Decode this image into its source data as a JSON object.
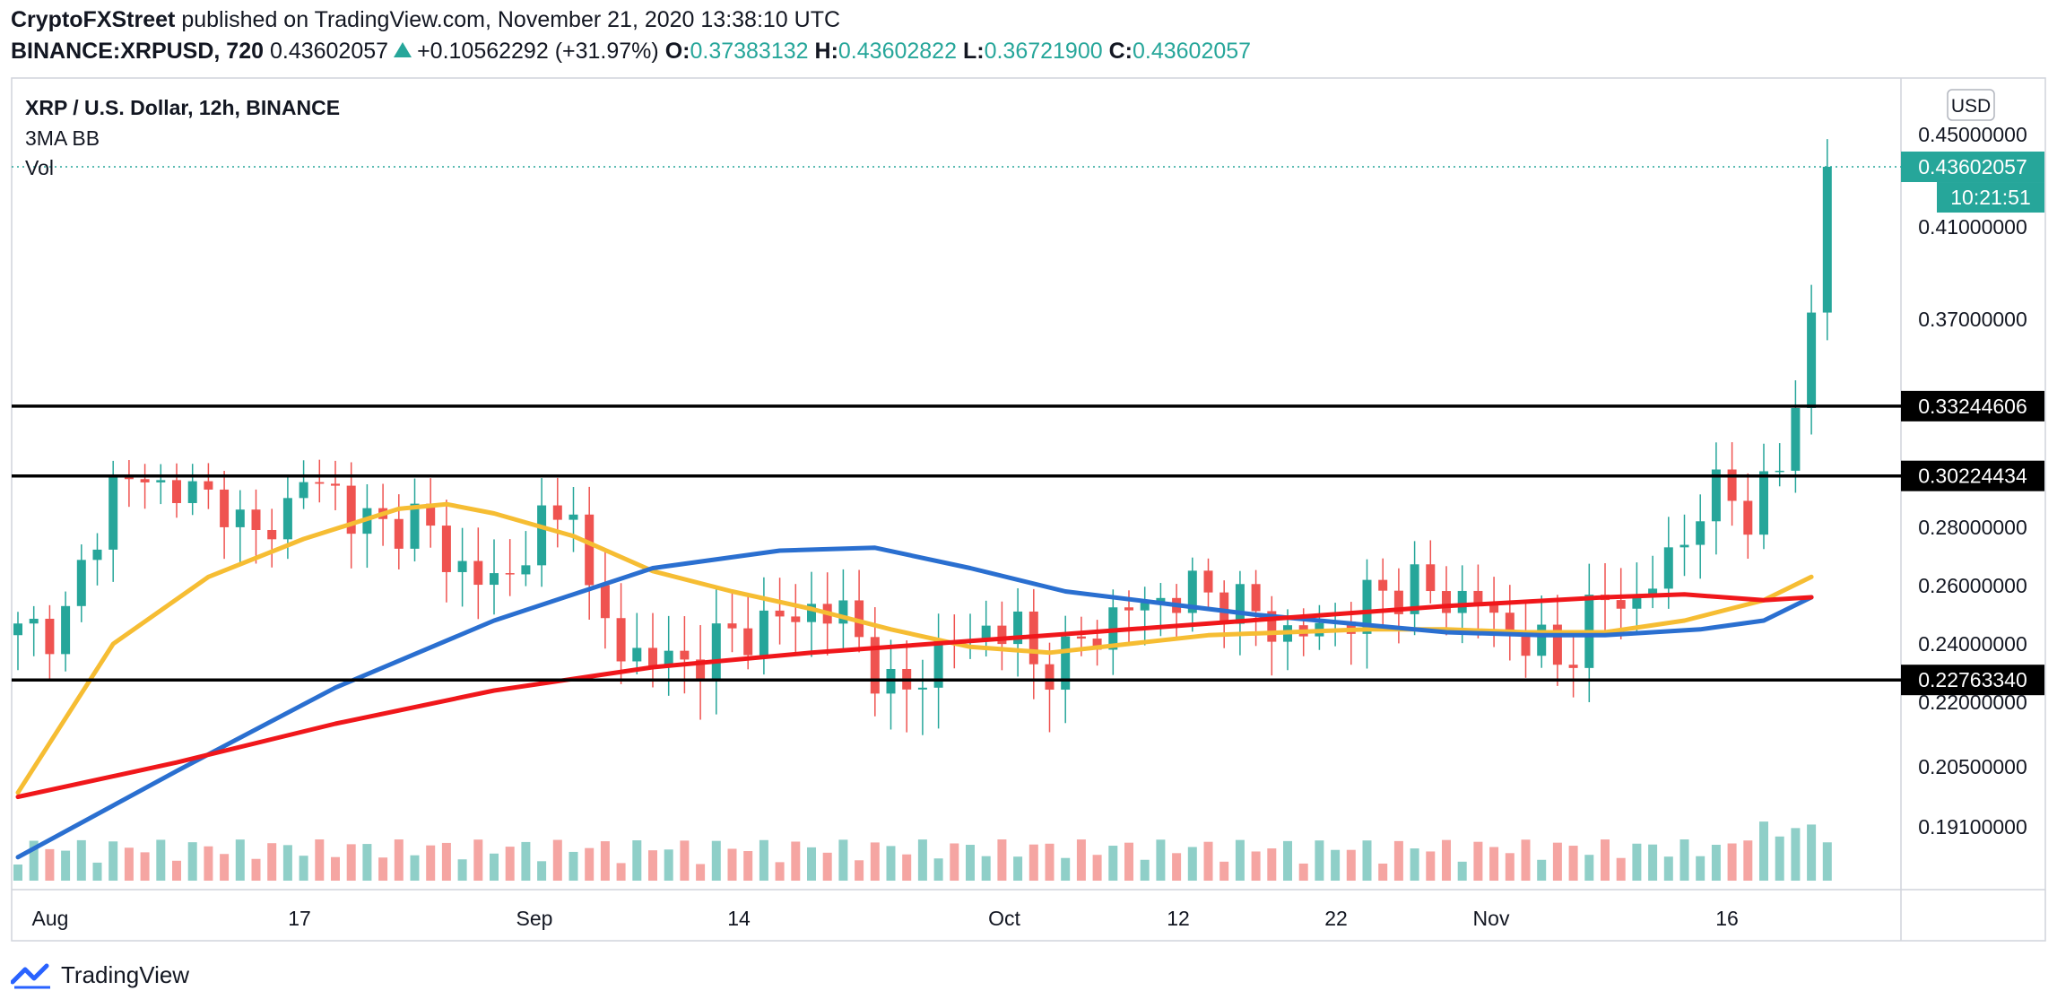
{
  "header": {
    "publisher": "CryptoFXStreet",
    "published_text": "published on TradingView.com, November 21, 2020 13:38:10 UTC",
    "symbol": "BINANCE:XRPUSD, 720",
    "last": "0.43602057",
    "change": "+0.10562292 (+31.97%)",
    "o_label": "O:",
    "o": "0.37383132",
    "h_label": "H:",
    "h": "0.43602822",
    "l_label": "L:",
    "l": "0.36721900",
    "c_label": "C:",
    "c": "0.43602057"
  },
  "legend": {
    "title": "XRP / U.S. Dollar, 12h, BINANCE",
    "indicator": "3MA BB",
    "volume": "Vol"
  },
  "price_axis": {
    "currency": "USD",
    "last_price_tag": "0.43602057",
    "countdown_tag": "10:21:51"
  },
  "footer": {
    "brand": "TradingView"
  },
  "colors": {
    "up": "#26a69a",
    "down": "#ef5350",
    "vol_up": "#8fcfc8",
    "vol_down": "#f5a5a2",
    "ma_yellow": "#f6bd33",
    "ma_blue": "#2a6fd0",
    "ma_red": "#f0171b",
    "level_line": "#000000",
    "tag_bg": "#000000",
    "last_bg": "#26a69a"
  },
  "chart_data": {
    "type": "candlestick",
    "title": "XRP / U.S. Dollar, 12h, BINANCE",
    "x_tick_labels": [
      "Aug",
      "17",
      "Sep",
      "14",
      "Oct",
      "12",
      "22",
      "Nov",
      "16"
    ],
    "y_tick_labels": [
      "0.45000000",
      "0.41000000",
      "0.37000000",
      "0.28000000",
      "0.26000000",
      "0.24000000",
      "0.22000000",
      "0.20500000",
      "0.19100000"
    ],
    "y_ticks": [
      0.45,
      0.41,
      0.37,
      0.28,
      0.26,
      0.24,
      0.22,
      0.205,
      0.191
    ],
    "horizontal_levels": [
      {
        "value": 0.33244606,
        "label": "0.33244606"
      },
      {
        "value": 0.30224434,
        "label": "0.30224434"
      },
      {
        "value": 0.2276334,
        "label": "0.22763340"
      }
    ],
    "last_price": 0.43602057,
    "close_path": [
      [
        0,
        0.243
      ],
      [
        3,
        0.248
      ],
      [
        5,
        0.28
      ],
      [
        6,
        0.3
      ],
      [
        8,
        0.3
      ],
      [
        11,
        0.295
      ],
      [
        13,
        0.29
      ],
      [
        15,
        0.275
      ],
      [
        17,
        0.29
      ],
      [
        18,
        0.3
      ],
      [
        20,
        0.296
      ],
      [
        21,
        0.285
      ],
      [
        23,
        0.28
      ],
      [
        25,
        0.285
      ],
      [
        27,
        0.27
      ],
      [
        29,
        0.262
      ],
      [
        31,
        0.262
      ],
      [
        32,
        0.275
      ],
      [
        33,
        0.283
      ],
      [
        34,
        0.28
      ],
      [
        35,
        0.295
      ],
      [
        36,
        0.255
      ],
      [
        38,
        0.238
      ],
      [
        40,
        0.235
      ],
      [
        42,
        0.233
      ],
      [
        44,
        0.24
      ],
      [
        46,
        0.245
      ],
      [
        48,
        0.248
      ],
      [
        50,
        0.252
      ],
      [
        52,
        0.25
      ],
      [
        54,
        0.232
      ],
      [
        55,
        0.224
      ],
      [
        56,
        0.222
      ],
      [
        57,
        0.233
      ],
      [
        59,
        0.24
      ],
      [
        61,
        0.245
      ],
      [
        63,
        0.245
      ],
      [
        64,
        0.232
      ],
      [
        66,
        0.235
      ],
      [
        68,
        0.245
      ],
      [
        70,
        0.252
      ],
      [
        72,
        0.255
      ],
      [
        74,
        0.258
      ],
      [
        76,
        0.256
      ],
      [
        78,
        0.25
      ],
      [
        80,
        0.243
      ],
      [
        82,
        0.245
      ],
      [
        84,
        0.25
      ],
      [
        86,
        0.258
      ],
      [
        88,
        0.26
      ],
      [
        90,
        0.255
      ],
      [
        92,
        0.256
      ],
      [
        93,
        0.247
      ],
      [
        95,
        0.243
      ],
      [
        96,
        0.238
      ],
      [
        97,
        0.233
      ],
      [
        98,
        0.24
      ],
      [
        99,
        0.25
      ],
      [
        100,
        0.255
      ],
      [
        102,
        0.255
      ],
      [
        103,
        0.262
      ],
      [
        104,
        0.268
      ],
      [
        105,
        0.275
      ],
      [
        106,
        0.29
      ],
      [
        107,
        0.296
      ],
      [
        108,
        0.292
      ],
      [
        109,
        0.285
      ],
      [
        110,
        0.298
      ],
      [
        111,
        0.305
      ],
      [
        112,
        0.333
      ],
      [
        113,
        0.372
      ],
      [
        114,
        0.436
      ]
    ],
    "ma_yellow": [
      [
        0,
        0.199
      ],
      [
        6,
        0.24
      ],
      [
        12,
        0.263
      ],
      [
        18,
        0.276
      ],
      [
        24,
        0.288
      ],
      [
        27,
        0.29
      ],
      [
        30,
        0.286
      ],
      [
        35,
        0.277
      ],
      [
        40,
        0.265
      ],
      [
        45,
        0.258
      ],
      [
        50,
        0.252
      ],
      [
        55,
        0.245
      ],
      [
        60,
        0.239
      ],
      [
        65,
        0.237
      ],
      [
        70,
        0.24
      ],
      [
        75,
        0.243
      ],
      [
        80,
        0.244
      ],
      [
        85,
        0.245
      ],
      [
        90,
        0.245
      ],
      [
        95,
        0.244
      ],
      [
        100,
        0.244
      ],
      [
        105,
        0.248
      ],
      [
        110,
        0.255
      ],
      [
        113,
        0.263
      ]
    ],
    "ma_blue": [
      [
        0,
        0.184
      ],
      [
        10,
        0.204
      ],
      [
        20,
        0.225
      ],
      [
        30,
        0.248
      ],
      [
        40,
        0.266
      ],
      [
        48,
        0.272
      ],
      [
        54,
        0.273
      ],
      [
        60,
        0.266
      ],
      [
        66,
        0.258
      ],
      [
        72,
        0.254
      ],
      [
        78,
        0.25
      ],
      [
        84,
        0.247
      ],
      [
        90,
        0.244
      ],
      [
        96,
        0.243
      ],
      [
        100,
        0.243
      ],
      [
        106,
        0.245
      ],
      [
        110,
        0.248
      ],
      [
        113,
        0.256
      ]
    ],
    "ma_red": [
      [
        0,
        0.198
      ],
      [
        10,
        0.206
      ],
      [
        20,
        0.215
      ],
      [
        30,
        0.224
      ],
      [
        40,
        0.232
      ],
      [
        50,
        0.237
      ],
      [
        60,
        0.241
      ],
      [
        70,
        0.245
      ],
      [
        80,
        0.249
      ],
      [
        90,
        0.253
      ],
      [
        100,
        0.256
      ],
      [
        105,
        0.257
      ],
      [
        110,
        0.255
      ],
      [
        113,
        0.256
      ]
    ]
  }
}
